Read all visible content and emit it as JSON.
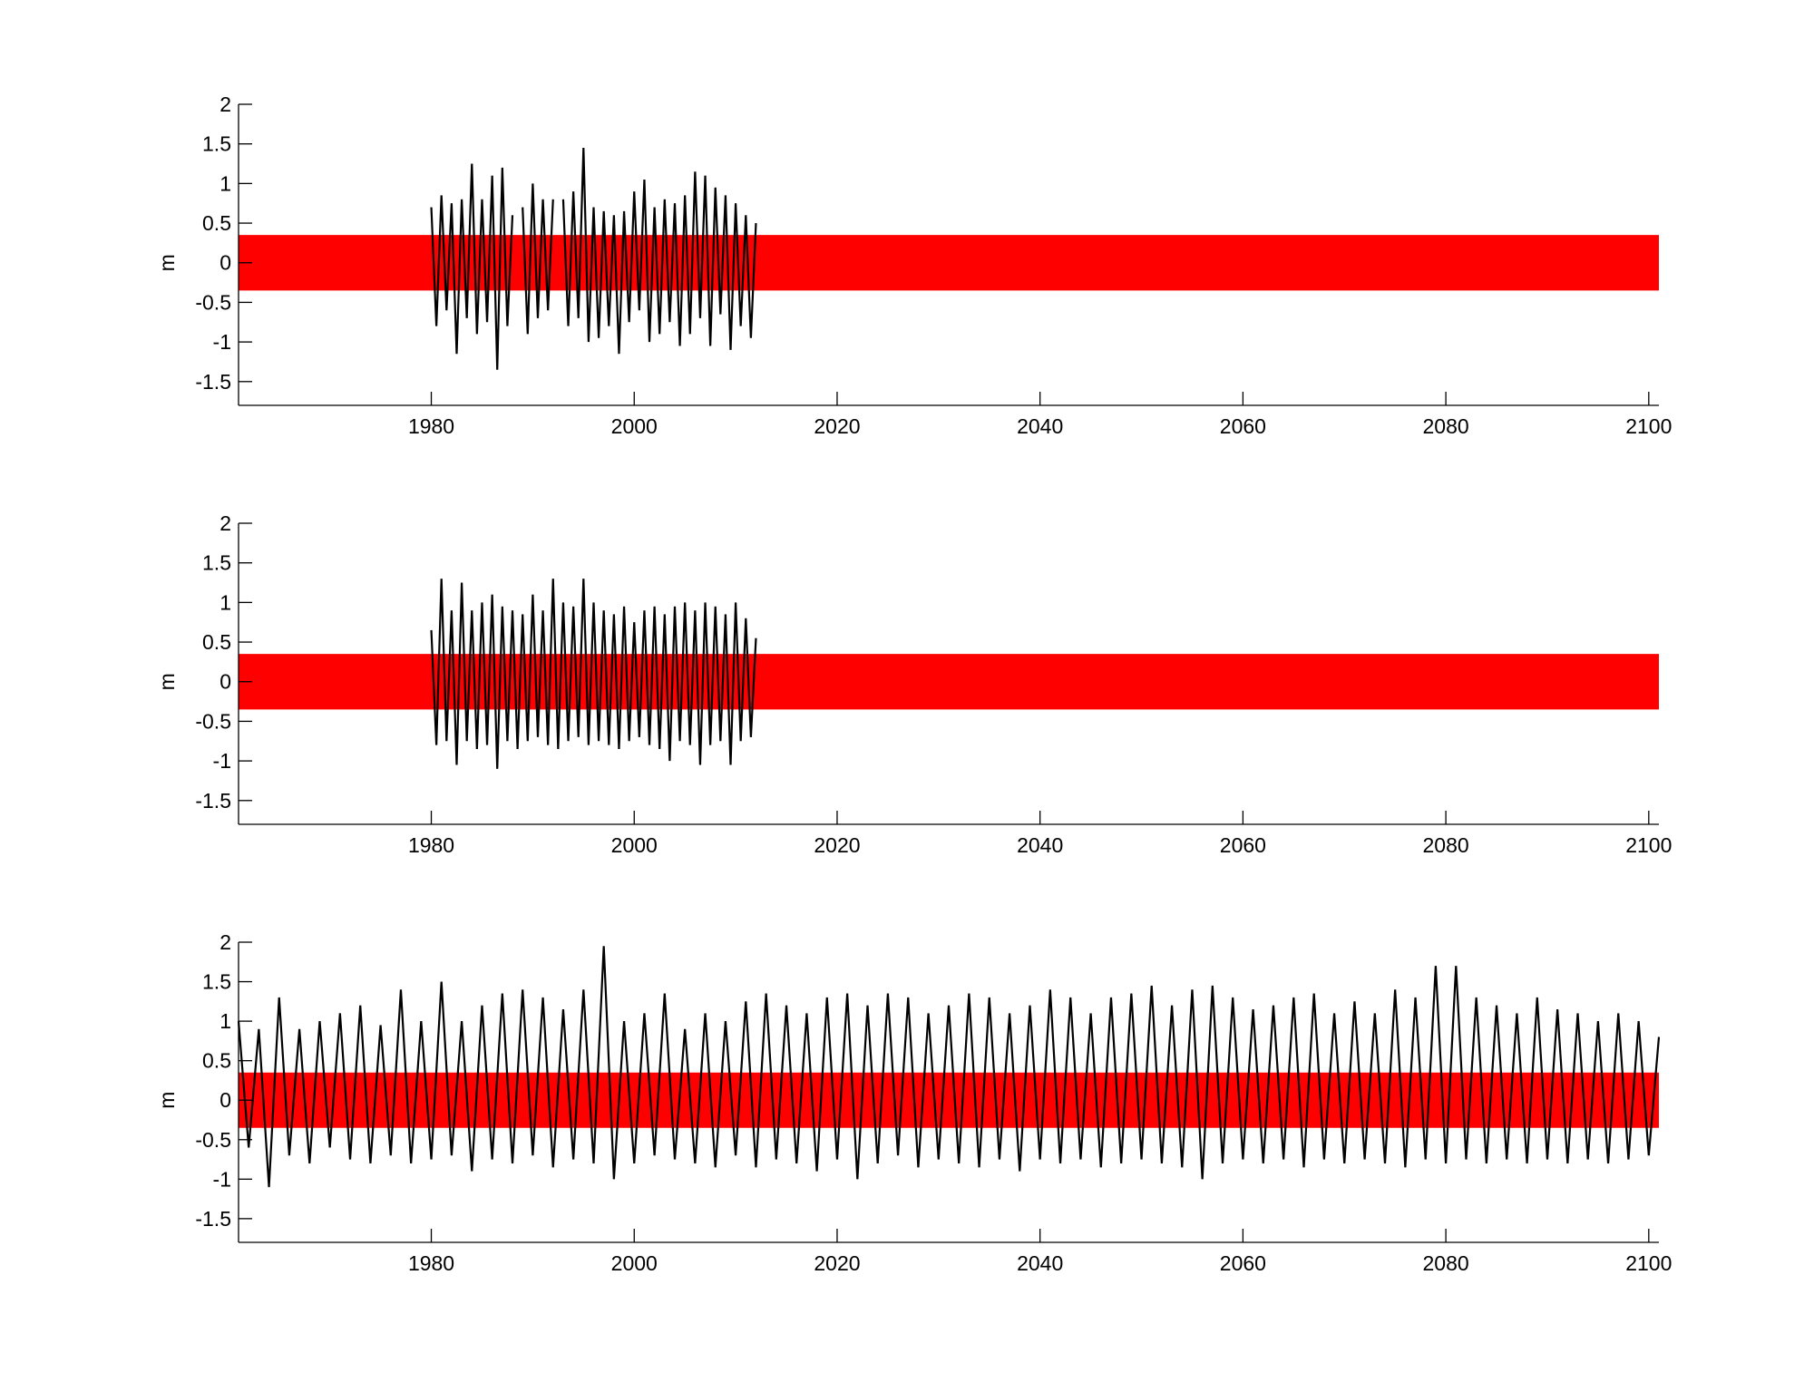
{
  "chart_data": [
    {
      "type": "line",
      "ylabel": "m",
      "xlim": [
        1961,
        2101
      ],
      "ylim": [
        -1.8,
        2
      ],
      "xticks": [
        1980,
        2000,
        2020,
        2040,
        2060,
        2080,
        2100
      ],
      "yticks": [
        -1.5,
        -1,
        -0.5,
        0,
        0.5,
        1,
        1.5,
        2
      ],
      "series": [
        {
          "color": "#ff0000",
          "x": [
            1961,
            2101
          ],
          "values": [
            0.35,
            0.35
          ],
          "lower": [
            -0.35,
            -0.35
          ]
        },
        {
          "color": "#000000",
          "x": [
            1980,
            1980.5,
            1981,
            1981.5,
            1982,
            1982.5,
            1983,
            1983.5,
            1984,
            1984.5,
            1985,
            1985.5,
            1986,
            1986.5,
            1987,
            1987.5,
            1988,
            1988.5,
            1989,
            1989.5,
            1990,
            1990.5,
            1991,
            1991.5,
            1992,
            1992.5,
            1993,
            1993.5,
            1994,
            1994.5,
            1995,
            1995.5,
            1996,
            1996.5,
            1997,
            1997.5,
            1998,
            1998.5,
            1999,
            1999.5,
            2000,
            2000.5,
            2001,
            2001.5,
            2002,
            2002.5,
            2003,
            2003.5,
            2004,
            2004.5,
            2005,
            2005.5,
            2006,
            2006.5,
            2007,
            2007.5,
            2008,
            2008.5,
            2009,
            2009.5,
            2010,
            2010.5,
            2011,
            2011.5,
            2012
          ],
          "values": [
            0.7,
            -0.8,
            0.85,
            -0.6,
            0.75,
            -1.15,
            0.8,
            -0.7,
            1.25,
            -0.9,
            0.8,
            -0.75,
            1.1,
            -1.35,
            1.2,
            -0.8,
            0.6,
            null,
            0.7,
            -0.9,
            1.0,
            -0.7,
            0.8,
            -0.6,
            0.8,
            null,
            0.8,
            -0.8,
            0.9,
            -0.7,
            1.45,
            -1.0,
            0.7,
            -0.95,
            0.65,
            -0.8,
            0.6,
            -1.15,
            0.65,
            -0.75,
            0.9,
            -0.6,
            1.05,
            -1.0,
            0.7,
            -0.9,
            0.8,
            -0.75,
            0.75,
            -1.05,
            0.85,
            -0.9,
            1.15,
            -0.7,
            1.1,
            -1.05,
            0.95,
            -0.65,
            0.85,
            -1.1,
            0.75,
            -0.8,
            0.6,
            -0.95,
            0.5
          ]
        }
      ]
    },
    {
      "type": "line",
      "ylabel": "m",
      "xlim": [
        1961,
        2101
      ],
      "ylim": [
        -1.8,
        2
      ],
      "xticks": [
        1980,
        2000,
        2020,
        2040,
        2060,
        2080,
        2100
      ],
      "yticks": [
        -1.5,
        -1,
        -0.5,
        0,
        0.5,
        1,
        1.5,
        2
      ],
      "series": [
        {
          "color": "#ff0000",
          "x": [
            1961,
            2101
          ],
          "values": [
            0.35,
            0.35
          ],
          "lower": [
            -0.35,
            -0.35
          ]
        },
        {
          "color": "#000000",
          "x": [
            1980,
            1980.5,
            1981,
            1981.5,
            1982,
            1982.5,
            1983,
            1983.5,
            1984,
            1984.5,
            1985,
            1985.5,
            1986,
            1986.5,
            1987,
            1987.5,
            1988,
            1988.5,
            1989,
            1989.5,
            1990,
            1990.5,
            1991,
            1991.5,
            1992,
            1992.5,
            1993,
            1993.5,
            1994,
            1994.5,
            1995,
            1995.5,
            1996,
            1996.5,
            1997,
            1997.5,
            1998,
            1998.5,
            1999,
            1999.5,
            2000,
            2000.5,
            2001,
            2001.5,
            2002,
            2002.5,
            2003,
            2003.5,
            2004,
            2004.5,
            2005,
            2005.5,
            2006,
            2006.5,
            2007,
            2007.5,
            2008,
            2008.5,
            2009,
            2009.5,
            2010,
            2010.5,
            2011,
            2011.5,
            2012
          ],
          "values": [
            0.65,
            -0.8,
            1.3,
            -0.75,
            0.9,
            -1.05,
            1.25,
            -0.75,
            0.9,
            -0.85,
            1.0,
            -0.8,
            1.1,
            -1.1,
            0.95,
            -0.75,
            0.9,
            -0.85,
            0.85,
            -0.75,
            1.1,
            -0.7,
            0.9,
            -0.8,
            1.3,
            -0.85,
            1.0,
            -0.75,
            0.95,
            -0.7,
            1.3,
            -0.8,
            1.0,
            -0.75,
            0.9,
            -0.8,
            0.85,
            -0.85,
            0.95,
            -0.75,
            0.75,
            -0.7,
            0.9,
            -0.8,
            0.95,
            -0.85,
            0.85,
            -1.0,
            0.95,
            -0.75,
            1.0,
            -0.8,
            0.9,
            -1.05,
            1.0,
            -0.8,
            0.95,
            -0.75,
            0.85,
            -1.05,
            1.0,
            -0.75,
            0.8,
            -0.7,
            0.55
          ]
        }
      ]
    },
    {
      "type": "line",
      "ylabel": "m",
      "xlim": [
        1961,
        2101
      ],
      "ylim": [
        -1.8,
        2
      ],
      "xticks": [
        1980,
        2000,
        2020,
        2040,
        2060,
        2080,
        2100
      ],
      "yticks": [
        -1.5,
        -1,
        -0.5,
        0,
        0.5,
        1,
        1.5,
        2
      ],
      "series": [
        {
          "color": "#ff0000",
          "x": [
            1961,
            2101
          ],
          "values": [
            0.35,
            0.35
          ],
          "lower": [
            -0.35,
            -0.35
          ]
        },
        {
          "color": "#000000",
          "x": [
            1961,
            1962,
            1963,
            1964,
            1965,
            1966,
            1967,
            1968,
            1969,
            1970,
            1971,
            1972,
            1973,
            1974,
            1975,
            1976,
            1977,
            1978,
            1979,
            1980,
            1981,
            1982,
            1983,
            1984,
            1985,
            1986,
            1987,
            1988,
            1989,
            1990,
            1991,
            1992,
            1993,
            1994,
            1995,
            1996,
            1997,
            1998,
            1999,
            2000,
            2001,
            2002,
            2003,
            2004,
            2005,
            2006,
            2007,
            2008,
            2009,
            2010,
            2011,
            2012,
            2013,
            2014,
            2015,
            2016,
            2017,
            2018,
            2019,
            2020,
            2021,
            2022,
            2023,
            2024,
            2025,
            2026,
            2027,
            2028,
            2029,
            2030,
            2031,
            2032,
            2033,
            2034,
            2035,
            2036,
            2037,
            2038,
            2039,
            2040,
            2041,
            2042,
            2043,
            2044,
            2045,
            2046,
            2047,
            2048,
            2049,
            2050,
            2051,
            2052,
            2053,
            2054,
            2055,
            2056,
            2057,
            2058,
            2059,
            2060,
            2061,
            2062,
            2063,
            2064,
            2065,
            2066,
            2067,
            2068,
            2069,
            2070,
            2071,
            2072,
            2073,
            2074,
            2075,
            2076,
            2077,
            2078,
            2079,
            2080,
            2081,
            2082,
            2083,
            2084,
            2085,
            2086,
            2087,
            2088,
            2089,
            2090,
            2091,
            2092,
            2093,
            2094,
            2095,
            2096,
            2097,
            2098,
            2099,
            2100,
            2101
          ],
          "values": [
            1.0,
            -0.6,
            0.9,
            -1.1,
            1.3,
            -0.7,
            0.9,
            -0.8,
            1.0,
            -0.6,
            1.1,
            -0.75,
            1.2,
            -0.8,
            0.95,
            -0.7,
            1.4,
            -0.8,
            1.0,
            -0.75,
            1.5,
            -0.7,
            1.0,
            -0.9,
            1.2,
            -0.75,
            1.35,
            -0.8,
            1.4,
            -0.7,
            1.3,
            -0.85,
            1.15,
            -0.75,
            1.4,
            -0.8,
            1.95,
            -1.0,
            1.0,
            -0.8,
            1.1,
            -0.7,
            1.35,
            -0.75,
            0.9,
            -0.8,
            1.1,
            -0.85,
            1.0,
            -0.7,
            1.25,
            -0.85,
            1.35,
            -0.75,
            1.2,
            -0.8,
            1.1,
            -0.9,
            1.3,
            -0.75,
            1.35,
            -1.0,
            1.2,
            -0.8,
            1.35,
            -0.7,
            1.3,
            -0.85,
            1.1,
            -0.75,
            1.2,
            -0.8,
            1.35,
            -0.85,
            1.3,
            -0.75,
            1.1,
            -0.9,
            1.2,
            -0.75,
            1.4,
            -0.8,
            1.3,
            -0.75,
            1.1,
            -0.85,
            1.3,
            -0.8,
            1.35,
            -0.75,
            1.45,
            -0.8,
            1.2,
            -0.85,
            1.4,
            -1.0,
            1.45,
            -0.8,
            1.3,
            -0.75,
            1.15,
            -0.8,
            1.2,
            -0.75,
            1.3,
            -0.85,
            1.35,
            -0.75,
            1.1,
            -0.8,
            1.25,
            -0.75,
            1.1,
            -0.8,
            1.4,
            -0.85,
            1.3,
            -0.75,
            1.7,
            -0.8,
            1.7,
            -0.75,
            1.3,
            -0.8,
            1.2,
            -0.75,
            1.1,
            -0.8,
            1.3,
            -0.75,
            1.15,
            -0.8,
            1.1,
            -0.75,
            1.0,
            -0.8,
            1.1,
            -0.75,
            1.0,
            -0.7,
            0.8
          ]
        }
      ]
    }
  ]
}
